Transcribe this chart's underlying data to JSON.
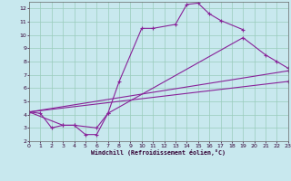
{
  "xlabel": "Windchill (Refroidissement éolien,°C)",
  "bg_color": "#c8e8ee",
  "grid_color": "#99ccbb",
  "line_color": "#882299",
  "xlim": [
    0,
    23
  ],
  "ylim": [
    2,
    12.5
  ],
  "xticks": [
    0,
    1,
    2,
    3,
    4,
    5,
    6,
    7,
    8,
    9,
    10,
    11,
    12,
    13,
    14,
    15,
    16,
    17,
    18,
    19,
    20,
    21,
    22,
    23
  ],
  "yticks": [
    2,
    3,
    4,
    5,
    6,
    7,
    8,
    9,
    10,
    11,
    12
  ],
  "curve1_x": [
    0,
    1,
    2,
    3,
    4,
    5,
    6,
    7,
    8,
    10,
    11,
    13,
    14,
    15,
    16,
    17,
    19
  ],
  "curve1_y": [
    4.2,
    4.1,
    3.0,
    3.2,
    3.2,
    2.5,
    2.5,
    4.1,
    6.5,
    10.5,
    10.5,
    10.8,
    12.3,
    12.4,
    11.6,
    11.1,
    10.4
  ],
  "curve2_x": [
    0,
    3,
    4,
    6,
    7,
    19,
    21,
    22,
    23
  ],
  "curve2_y": [
    4.2,
    3.2,
    3.2,
    3.0,
    4.1,
    9.8,
    8.5,
    8.0,
    7.5
  ],
  "curve3_x": [
    0,
    23
  ],
  "curve3_y": [
    4.2,
    6.5
  ],
  "curve4_x": [
    0,
    23
  ],
  "curve4_y": [
    4.2,
    7.3
  ]
}
